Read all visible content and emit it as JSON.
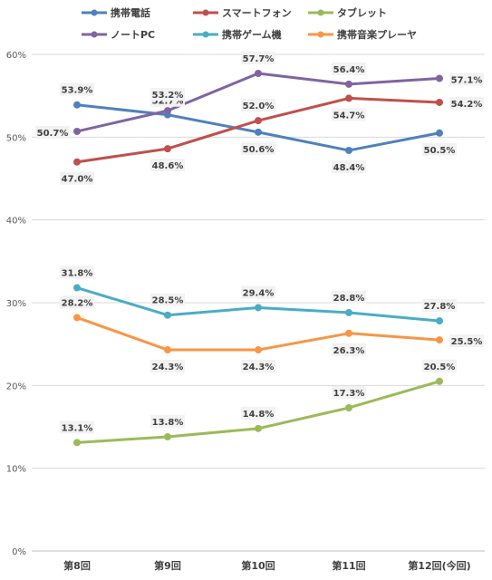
{
  "chart_data": {
    "type": "line",
    "categories": [
      "第8回",
      "第9回",
      "第10回",
      "第11回",
      "第12回(今回)"
    ],
    "ylim": [
      0,
      60
    ],
    "yticks": [
      0,
      10,
      20,
      30,
      40,
      50,
      60
    ],
    "ytick_labels": [
      "0%",
      "10%",
      "20%",
      "30%",
      "40%",
      "50%",
      "60%"
    ],
    "grid": true,
    "legend_position": "top",
    "series": [
      {
        "name": "携帯電話",
        "color": "#4f81bd",
        "values": [
          53.9,
          52.7,
          50.6,
          48.4,
          50.5
        ],
        "labels": [
          "53.9%",
          "52.7%",
          "50.6%",
          "48.4%",
          "50.5%"
        ]
      },
      {
        "name": "スマートフォン",
        "color": "#c0504d",
        "values": [
          47.0,
          48.6,
          52.0,
          54.7,
          54.2
        ],
        "labels": [
          "47.0%",
          "48.6%",
          "52.0%",
          "54.7%",
          "54.2%"
        ]
      },
      {
        "name": "タブレット",
        "color": "#9bbb59",
        "values": [
          13.1,
          13.8,
          14.8,
          17.3,
          20.5
        ],
        "labels": [
          "13.1%",
          "13.8%",
          "14.8%",
          "17.3%",
          "20.5%"
        ]
      },
      {
        "name": "ノートPC",
        "color": "#8064a2",
        "values": [
          50.7,
          53.2,
          57.7,
          56.4,
          57.1
        ],
        "labels": [
          "50.7%",
          "53.2%",
          "57.7%",
          "56.4%",
          "57.1%"
        ]
      },
      {
        "name": "携帯ゲーム機",
        "color": "#4bacc6",
        "values": [
          31.8,
          28.5,
          29.4,
          28.8,
          27.8
        ],
        "labels": [
          "31.8%",
          "28.5%",
          "29.4%",
          "28.8%",
          "27.8%"
        ]
      },
      {
        "name": "携帯音楽プレーヤ",
        "color": "#f79646",
        "values": [
          28.2,
          24.3,
          24.3,
          26.3,
          25.5
        ],
        "labels": [
          "28.2%",
          "24.3%",
          "24.3%",
          "26.3%",
          "25.5%"
        ]
      }
    ]
  }
}
